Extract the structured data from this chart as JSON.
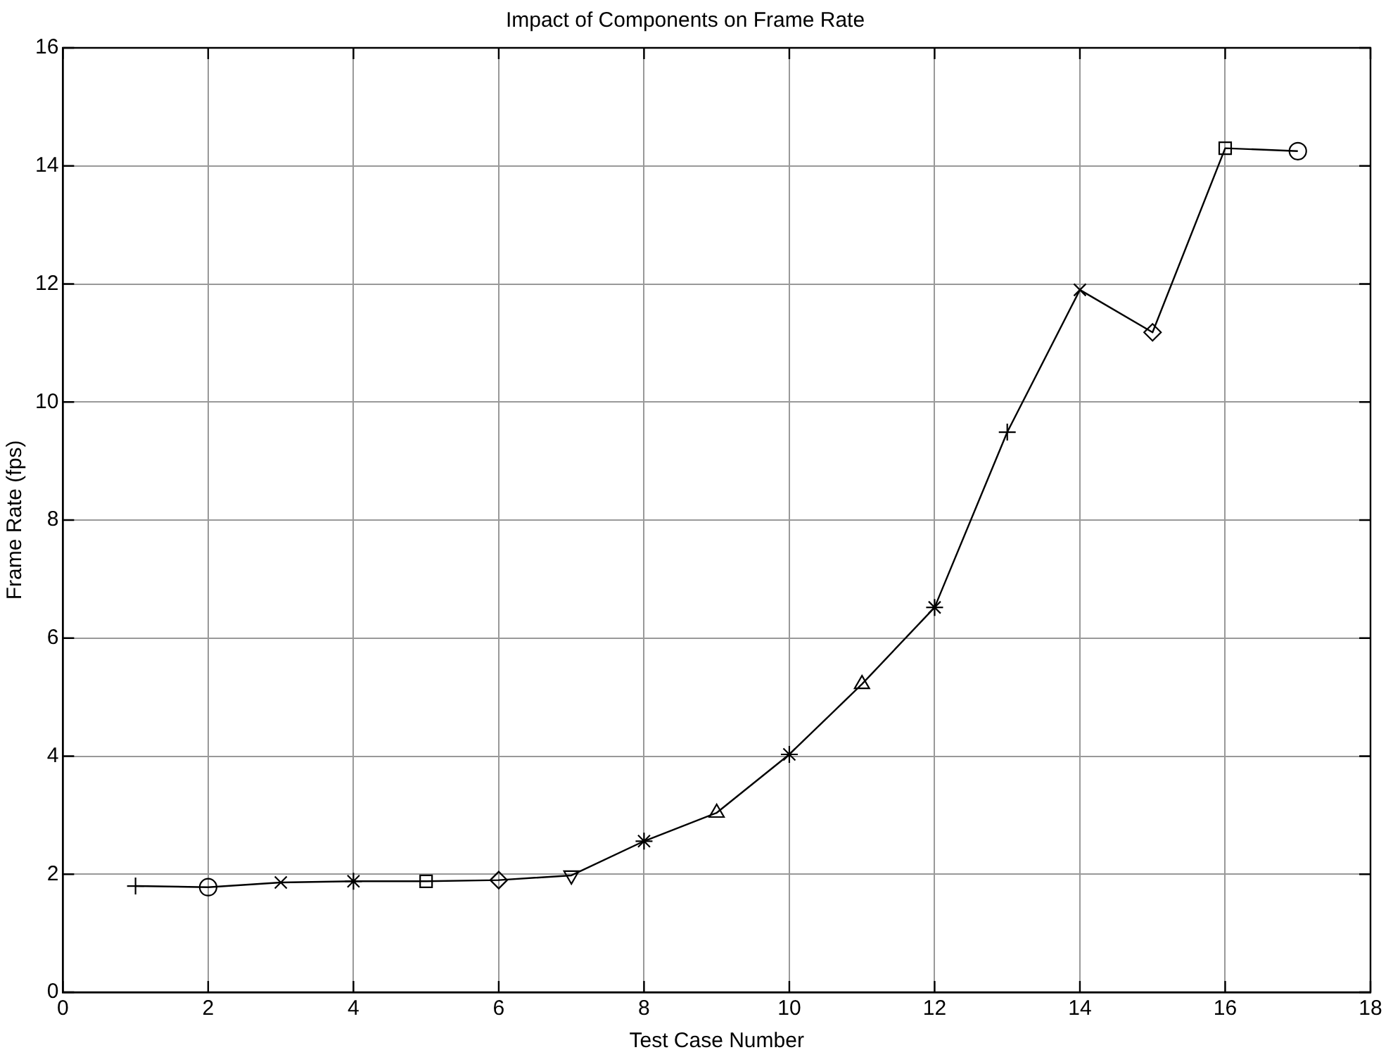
{
  "chart_data": {
    "type": "line",
    "title": "Impact of Components on Frame Rate",
    "xlabel": "Test Case Number",
    "ylabel": "Frame Rate (fps)",
    "x": [
      1,
      2,
      3,
      4,
      5,
      6,
      7,
      8,
      9,
      10,
      11,
      12,
      13,
      14,
      15,
      16,
      17
    ],
    "series": [
      {
        "color": "#000000",
        "values": [
          1.8,
          1.78,
          1.86,
          1.88,
          1.88,
          1.9,
          1.98,
          2.56,
          3.04,
          4.03,
          5.22,
          6.52,
          9.49,
          11.9,
          11.18,
          14.3,
          14.25
        ],
        "marker": [
          "cross",
          "circle",
          "x",
          "star",
          "square",
          "diamond",
          "triangle-down",
          "star",
          "triangle",
          "star",
          "triangle",
          "star",
          "cross",
          "x",
          "diamond",
          "square",
          "circle"
        ]
      }
    ],
    "xlim": [
      0,
      18
    ],
    "xticks": [
      0,
      2,
      4,
      6,
      8,
      10,
      12,
      14,
      16,
      18
    ],
    "ylim": [
      0,
      16
    ],
    "yticks": [
      0,
      2,
      4,
      6,
      8,
      10,
      12,
      14,
      16
    ],
    "grid": true,
    "line_style": "solid",
    "legend": false
  }
}
